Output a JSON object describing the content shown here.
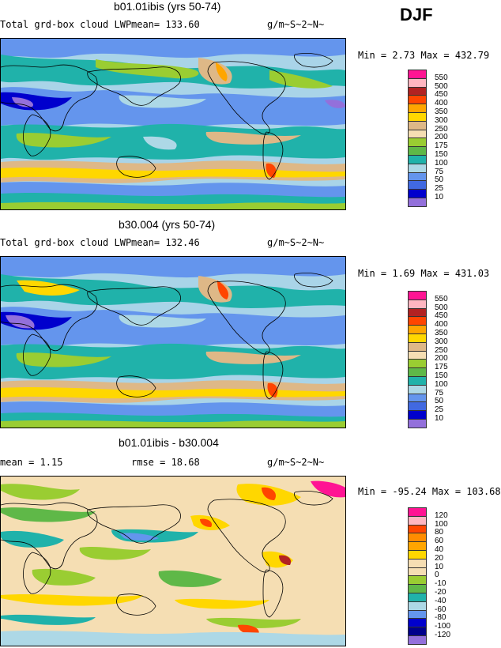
{
  "season_label": "DJF",
  "panels": [
    {
      "title": "b01.01ibis (yrs 50-74)",
      "left_label": "Total grd-box cloud LWP",
      "mean_label": "mean= 133.60",
      "units": "g/m~S~2~N~",
      "range_label": "Min =   2.73 Max = 432.79",
      "legend": {
        "levels": [
          "550",
          "500",
          "450",
          "400",
          "350",
          "300",
          "250",
          "200",
          "175",
          "150",
          "100",
          "75",
          "50",
          "25",
          "10"
        ],
        "colors": [
          "#ff1493",
          "#ffb6c1",
          "#b22222",
          "#ff4500",
          "#ffa500",
          "#ffd700",
          "#deb887",
          "#f5deb3",
          "#9acd32",
          "#5fb848",
          "#20b2aa",
          "#add8e6",
          "#6495ed",
          "#4169e1",
          "#0000cd",
          "#9370db"
        ]
      }
    },
    {
      "title": "b30.004 (yrs 50-74)",
      "left_label": "Total grd-box cloud LWP",
      "mean_label": "mean= 132.46",
      "units": "g/m~S~2~N~",
      "range_label": "Min =   1.69 Max = 431.03",
      "legend": {
        "levels": [
          "550",
          "500",
          "450",
          "400",
          "350",
          "300",
          "250",
          "200",
          "175",
          "150",
          "100",
          "75",
          "50",
          "25",
          "10"
        ],
        "colors": [
          "#ff1493",
          "#ffb6c1",
          "#b22222",
          "#ff4500",
          "#ffa500",
          "#ffd700",
          "#deb887",
          "#f5deb3",
          "#9acd32",
          "#5fb848",
          "#20b2aa",
          "#add8e6",
          "#6495ed",
          "#4169e1",
          "#0000cd",
          "#9370db"
        ]
      }
    },
    {
      "title": "b01.01ibis - b30.004",
      "left_label": "mean =    1.15",
      "mean_label": "rmse =   18.68",
      "units": "g/m~S~2~N~",
      "range_label": "Min = -95.24 Max = 103.68",
      "legend": {
        "levels": [
          "120",
          "100",
          "80",
          "60",
          "40",
          "20",
          "10",
          "0",
          "-10",
          "-20",
          "-40",
          "-60",
          "-80",
          "-100",
          "-120"
        ],
        "colors": [
          "#ff1493",
          "#ffb6c1",
          "#ff4500",
          "#ff8c00",
          "#ffa500",
          "#ffd700",
          "#f5deb3",
          "#f5deb3",
          "#9acd32",
          "#5fb848",
          "#20b2aa",
          "#add8e6",
          "#6495ed",
          "#0000cd",
          "#00008b",
          "#9370db"
        ]
      }
    }
  ]
}
